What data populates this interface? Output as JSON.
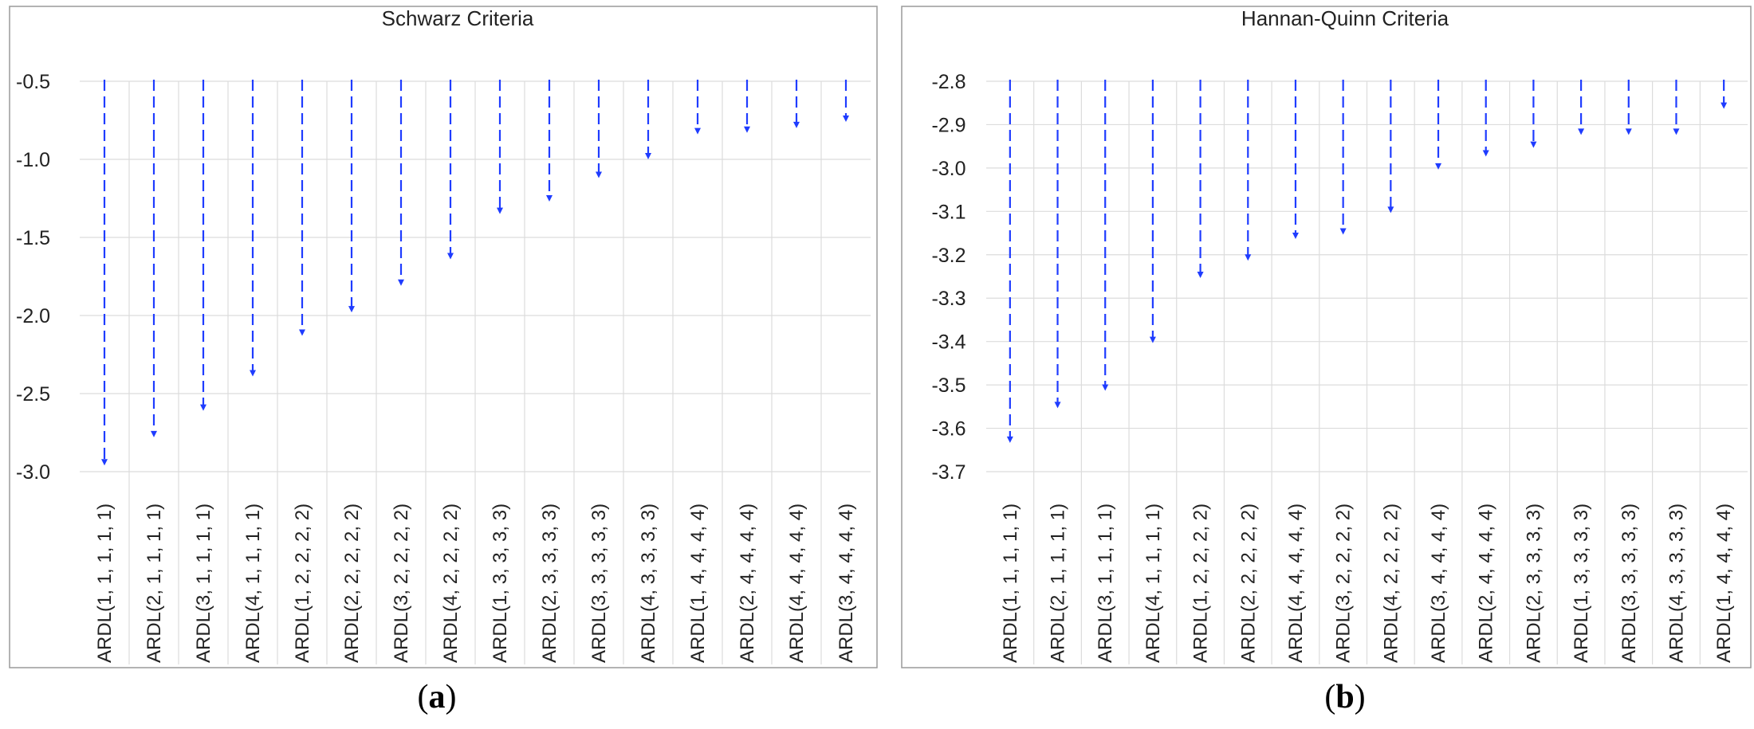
{
  "chart_data": [
    {
      "type": "dropline",
      "title": "Schwarz Criteria",
      "panel_label": "a",
      "ylim": [
        -3.0,
        -0.5
      ],
      "y_ticks": [
        "-0.5",
        "-1.0",
        "-1.5",
        "-2.0",
        "-2.5",
        "-3.0"
      ],
      "grid": true,
      "categories": [
        "ARDL(1, 1, 1, 1, 1)",
        "ARDL(2, 1, 1, 1, 1)",
        "ARDL(3, 1, 1, 1, 1)",
        "ARDL(4, 1, 1, 1, 1)",
        "ARDL(1, 2, 2, 2, 2)",
        "ARDL(2, 2, 2, 2, 2)",
        "ARDL(3, 2, 2, 2, 2)",
        "ARDL(4, 2, 2, 2, 2)",
        "ARDL(1, 3, 3, 3, 3)",
        "ARDL(2, 3, 3, 3, 3)",
        "ARDL(3, 3, 3, 3, 3)",
        "ARDL(4, 3, 3, 3, 3)",
        "ARDL(1, 4, 4, 4, 4)",
        "ARDL(2, 4, 4, 4, 4)",
        "ARDL(4, 4, 4, 4, 4)",
        "ARDL(3, 4, 4, 4, 4)"
      ],
      "values": [
        -2.95,
        -2.77,
        -2.6,
        -2.38,
        -2.12,
        -1.97,
        -1.8,
        -1.63,
        -1.34,
        -1.26,
        -1.11,
        -0.99,
        -0.83,
        -0.82,
        -0.79,
        -0.75
      ]
    },
    {
      "type": "dropline",
      "title": "Hannan-Quinn Criteria",
      "panel_label": "b",
      "ylim": [
        -3.7,
        -2.8
      ],
      "y_ticks": [
        "-2.8",
        "-2.9",
        "-3.0",
        "-3.1",
        "-3.2",
        "-3.3",
        "-3.4",
        "-3.5",
        "-3.6",
        "-3.7"
      ],
      "grid": true,
      "categories": [
        "ARDL(1, 1, 1, 1, 1)",
        "ARDL(2, 1, 1, 1, 1)",
        "ARDL(3, 1, 1, 1, 1)",
        "ARDL(4, 1, 1, 1, 1)",
        "ARDL(1, 2, 2, 2, 2)",
        "ARDL(2, 2, 2, 2, 2)",
        "ARDL(4, 4, 4, 4, 4)",
        "ARDL(3, 2, 2, 2, 2)",
        "ARDL(4, 2, 2, 2, 2)",
        "ARDL(3, 4, 4, 4, 4)",
        "ARDL(2, 4, 4, 4, 4)",
        "ARDL(2, 3, 3, 3, 3)",
        "ARDL(1, 3, 3, 3, 3)",
        "ARDL(3, 3, 3, 3, 3)",
        "ARDL(4, 3, 3, 3, 3)",
        "ARDL(1, 4, 4, 4, 4)"
      ],
      "values": [
        -3.63,
        -3.55,
        -3.51,
        -3.4,
        -3.25,
        -3.21,
        -3.16,
        -3.15,
        -3.1,
        -3.0,
        -2.97,
        -2.95,
        -2.92,
        -2.92,
        -2.92,
        -2.86
      ]
    }
  ],
  "colors": {
    "line": "#1f3cff",
    "grid": "#dcdcdc",
    "frame": "#9a9a9a",
    "text": "#222222"
  }
}
